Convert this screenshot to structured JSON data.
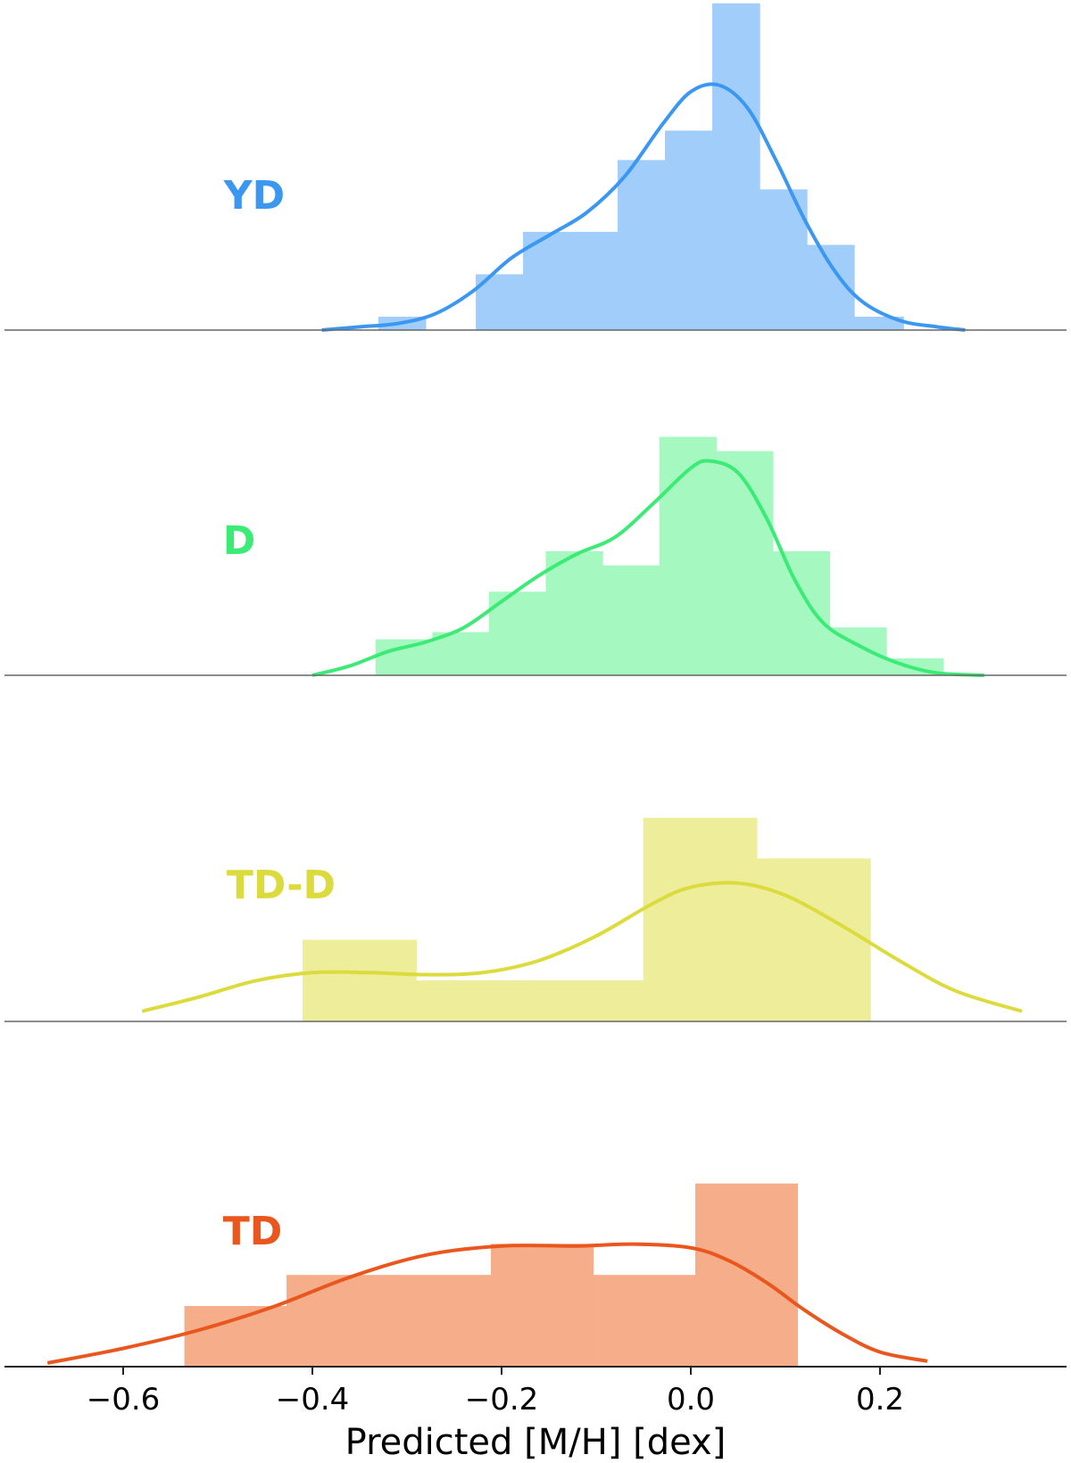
{
  "chart_data": {
    "type": "bar",
    "subtype": "stacked histogram panels with KDE curves",
    "xlabel": "Predicted [M/H] [dex]",
    "xlim": [
      -0.68,
      0.37
    ],
    "xticks": [
      -0.6,
      -0.4,
      -0.2,
      0.0,
      0.2
    ],
    "xtick_labels": [
      "−0.6",
      "−0.4",
      "−0.2",
      "0.0",
      "0.2"
    ],
    "grid": false,
    "panels": [
      {
        "name": "YD",
        "color": "#3b97f0",
        "bar_color": "#a0cdfa",
        "ymax": 1.0,
        "bins": [
          {
            "x0": -0.33,
            "x1": -0.28,
            "h": 0.04
          },
          {
            "x0": -0.28,
            "x1": -0.227,
            "h": 0.0
          },
          {
            "x0": -0.227,
            "x1": -0.177,
            "h": 0.17
          },
          {
            "x0": -0.177,
            "x1": -0.127,
            "h": 0.3
          },
          {
            "x0": -0.127,
            "x1": -0.077,
            "h": 0.3
          },
          {
            "x0": -0.077,
            "x1": -0.027,
            "h": 0.52
          },
          {
            "x0": -0.027,
            "x1": 0.023,
            "h": 0.61
          },
          {
            "x0": 0.023,
            "x1": 0.073,
            "h": 1.0
          },
          {
            "x0": 0.073,
            "x1": 0.123,
            "h": 0.43
          },
          {
            "x0": 0.123,
            "x1": 0.173,
            "h": 0.26
          },
          {
            "x0": 0.173,
            "x1": 0.225,
            "h": 0.04
          }
        ],
        "kde": {
          "x": [
            -0.39,
            -0.35,
            -0.31,
            -0.27,
            -0.23,
            -0.19,
            -0.15,
            -0.11,
            -0.07,
            -0.03,
            0.0,
            0.03,
            0.06,
            0.09,
            0.12,
            0.15,
            0.18,
            0.22,
            0.26,
            0.29
          ],
          "y": [
            0.0,
            0.01,
            0.02,
            0.05,
            0.12,
            0.22,
            0.29,
            0.36,
            0.47,
            0.63,
            0.73,
            0.75,
            0.68,
            0.52,
            0.34,
            0.19,
            0.09,
            0.03,
            0.01,
            0.0
          ]
        }
      },
      {
        "name": "D",
        "color": "#3ceb76",
        "bar_color": "#a4f8c0",
        "ymax": 1.0,
        "bins": [
          {
            "x0": -0.333,
            "x1": -0.273,
            "h": 0.15
          },
          {
            "x0": -0.273,
            "x1": -0.213,
            "h": 0.18
          },
          {
            "x0": -0.213,
            "x1": -0.153,
            "h": 0.35
          },
          {
            "x0": -0.153,
            "x1": -0.093,
            "h": 0.52
          },
          {
            "x0": -0.093,
            "x1": -0.033,
            "h": 0.46
          },
          {
            "x0": -0.033,
            "x1": 0.027,
            "h": 1.0
          },
          {
            "x0": 0.027,
            "x1": 0.087,
            "h": 0.94
          },
          {
            "x0": 0.087,
            "x1": 0.147,
            "h": 0.52
          },
          {
            "x0": 0.147,
            "x1": 0.207,
            "h": 0.2
          },
          {
            "x0": 0.207,
            "x1": 0.267,
            "h": 0.07
          }
        ],
        "kde": {
          "x": [
            -0.4,
            -0.36,
            -0.32,
            -0.28,
            -0.24,
            -0.2,
            -0.16,
            -0.12,
            -0.08,
            -0.04,
            0.0,
            0.02,
            0.05,
            0.08,
            0.11,
            0.14,
            0.18,
            0.22,
            0.26,
            0.31
          ],
          "y": [
            0.0,
            0.04,
            0.1,
            0.14,
            0.2,
            0.31,
            0.42,
            0.51,
            0.58,
            0.72,
            0.87,
            0.9,
            0.85,
            0.66,
            0.4,
            0.22,
            0.12,
            0.05,
            0.01,
            0.0
          ]
        }
      },
      {
        "name": "TD-D",
        "color": "#dbdb3d",
        "bar_color": "#eeed9a",
        "ymax": 1.0,
        "bins": [
          {
            "x0": -0.41,
            "x1": -0.29,
            "h": 0.4
          },
          {
            "x0": -0.29,
            "x1": -0.17,
            "h": 0.2
          },
          {
            "x0": -0.17,
            "x1": -0.05,
            "h": 0.2
          },
          {
            "x0": -0.05,
            "x1": 0.07,
            "h": 1.0
          },
          {
            "x0": 0.07,
            "x1": 0.19,
            "h": 0.8
          }
        ],
        "kde": {
          "x": [
            -0.58,
            -0.52,
            -0.46,
            -0.4,
            -0.34,
            -0.28,
            -0.22,
            -0.16,
            -0.1,
            -0.04,
            0.0,
            0.05,
            0.1,
            0.16,
            0.22,
            0.28,
            0.35
          ],
          "y": [
            0.05,
            0.12,
            0.2,
            0.24,
            0.24,
            0.23,
            0.24,
            0.3,
            0.42,
            0.58,
            0.66,
            0.68,
            0.62,
            0.47,
            0.3,
            0.15,
            0.05
          ]
        }
      },
      {
        "name": "TD",
        "color": "#ea571e",
        "bar_color": "#f5ad8a",
        "ymax": 1.0,
        "bins": [
          {
            "x0": -0.535,
            "x1": -0.427,
            "h": 0.33
          },
          {
            "x0": -0.427,
            "x1": -0.319,
            "h": 0.5
          },
          {
            "x0": -0.319,
            "x1": -0.211,
            "h": 0.5
          },
          {
            "x0": -0.211,
            "x1": -0.103,
            "h": 0.67
          },
          {
            "x0": -0.103,
            "x1": 0.005,
            "h": 0.5
          },
          {
            "x0": 0.005,
            "x1": 0.113,
            "h": 1.0
          }
        ],
        "kde": {
          "x": [
            -0.68,
            -0.6,
            -0.52,
            -0.44,
            -0.36,
            -0.28,
            -0.2,
            -0.12,
            -0.06,
            0.0,
            0.04,
            0.08,
            0.12,
            0.16,
            0.2,
            0.25
          ],
          "y": [
            0.02,
            0.1,
            0.2,
            0.33,
            0.49,
            0.61,
            0.66,
            0.66,
            0.67,
            0.65,
            0.58,
            0.46,
            0.31,
            0.18,
            0.08,
            0.03
          ]
        }
      }
    ]
  }
}
